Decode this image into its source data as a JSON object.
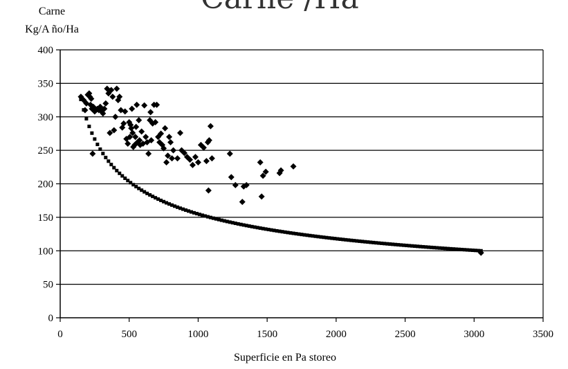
{
  "chart_data": {
    "type": "scatter",
    "title": "Carne /Ha",
    "ylabel_line1": "Carne",
    "ylabel_line2": "Kg/A ño/Ha",
    "xlabel": "Superficie en Pa storeo",
    "xlim": [
      0,
      3500
    ],
    "ylim": [
      0,
      400
    ],
    "xticks": [
      0,
      500,
      1000,
      1500,
      2000,
      2500,
      3000,
      3500
    ],
    "yticks": [
      0,
      50,
      100,
      150,
      200,
      250,
      300,
      350,
      400
    ],
    "grid": "horizontal",
    "trendline": {
      "type": "power",
      "x_start": 150,
      "y_start": 326,
      "x_end": 3050,
      "y_end": 100
    },
    "series": [
      {
        "marker": "diamond",
        "points": [
          [
            150,
            330
          ],
          [
            170,
            325
          ],
          [
            180,
            310
          ],
          [
            190,
            320
          ],
          [
            200,
            333
          ],
          [
            210,
            335
          ],
          [
            215,
            330
          ],
          [
            220,
            318
          ],
          [
            225,
            327
          ],
          [
            230,
            312
          ],
          [
            235,
            245
          ],
          [
            240,
            315
          ],
          [
            250,
            308
          ],
          [
            260,
            310
          ],
          [
            270,
            312
          ],
          [
            280,
            310
          ],
          [
            290,
            315
          ],
          [
            300,
            308
          ],
          [
            310,
            305
          ],
          [
            320,
            312
          ],
          [
            330,
            320
          ],
          [
            340,
            342
          ],
          [
            350,
            335
          ],
          [
            360,
            276
          ],
          [
            370,
            340
          ],
          [
            380,
            330
          ],
          [
            390,
            280
          ],
          [
            400,
            300
          ],
          [
            410,
            342
          ],
          [
            420,
            325
          ],
          [
            430,
            330
          ],
          [
            440,
            310
          ],
          [
            450,
            284
          ],
          [
            460,
            290
          ],
          [
            470,
            308
          ],
          [
            480,
            267
          ],
          [
            490,
            260
          ],
          [
            500,
            292
          ],
          [
            505,
            270
          ],
          [
            510,
            288
          ],
          [
            515,
            283
          ],
          [
            520,
            312
          ],
          [
            525,
            276
          ],
          [
            530,
            255
          ],
          [
            540,
            258
          ],
          [
            545,
            270
          ],
          [
            550,
            285
          ],
          [
            555,
            318
          ],
          [
            560,
            262
          ],
          [
            570,
            295
          ],
          [
            575,
            265
          ],
          [
            580,
            258
          ],
          [
            590,
            278
          ],
          [
            600,
            260
          ],
          [
            610,
            317
          ],
          [
            620,
            270
          ],
          [
            630,
            262
          ],
          [
            640,
            245
          ],
          [
            650,
            295
          ],
          [
            655,
            307
          ],
          [
            660,
            265
          ],
          [
            670,
            290
          ],
          [
            680,
            318
          ],
          [
            690,
            292
          ],
          [
            700,
            318
          ],
          [
            710,
            270
          ],
          [
            720,
            262
          ],
          [
            730,
            275
          ],
          [
            740,
            258
          ],
          [
            750,
            253
          ],
          [
            760,
            283
          ],
          [
            770,
            232
          ],
          [
            780,
            242
          ],
          [
            790,
            270
          ],
          [
            800,
            262
          ],
          [
            810,
            238
          ],
          [
            820,
            250
          ],
          [
            850,
            238
          ],
          [
            870,
            276
          ],
          [
            880,
            250
          ],
          [
            900,
            246
          ],
          [
            920,
            240
          ],
          [
            940,
            236
          ],
          [
            960,
            228
          ],
          [
            980,
            240
          ],
          [
            1000,
            232
          ],
          [
            1020,
            258
          ],
          [
            1040,
            254
          ],
          [
            1060,
            234
          ],
          [
            1070,
            262
          ],
          [
            1075,
            190
          ],
          [
            1080,
            265
          ],
          [
            1090,
            286
          ],
          [
            1100,
            238
          ],
          [
            1230,
            245
          ],
          [
            1240,
            210
          ],
          [
            1270,
            198
          ],
          [
            1320,
            173
          ],
          [
            1330,
            196
          ],
          [
            1350,
            198
          ],
          [
            1450,
            232
          ],
          [
            1460,
            181
          ],
          [
            1470,
            212
          ],
          [
            1490,
            218
          ],
          [
            1590,
            216
          ],
          [
            1600,
            220
          ],
          [
            1690,
            226
          ],
          [
            3050,
            97
          ]
        ]
      }
    ]
  }
}
